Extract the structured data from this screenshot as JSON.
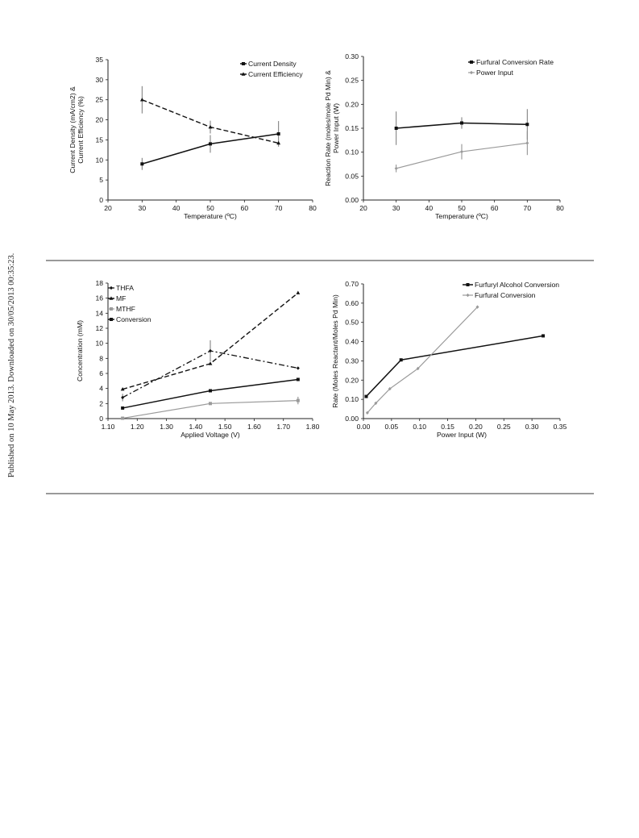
{
  "side_note": "Published on 10 May 2013. Downloaded on 30/05/2013 00:35:23.",
  "chart_data": [
    {
      "type": "line",
      "xlabel": "Temperature (ºC)",
      "ylabel_lines": [
        "Current Density (mA/cm2) &",
        "Current Efficiency (%)"
      ],
      "xlim": [
        20,
        80
      ],
      "ylim": [
        0,
        35
      ],
      "x_ticks": [
        20,
        30,
        40,
        50,
        60,
        70,
        80
      ],
      "y_ticks": [
        0,
        5,
        10,
        15,
        20,
        25,
        30,
        35
      ],
      "x_decimals": 0,
      "y_decimals": 0,
      "legend_position": "top-right",
      "grid": false,
      "series": [
        {
          "name": "Current Density",
          "style": "solid-black",
          "marker": "square",
          "x": [
            30,
            50,
            70
          ],
          "y": [
            9,
            14,
            16.5
          ],
          "err": [
            1.5,
            2.2,
            3.2
          ]
        },
        {
          "name": "Current Efficiency",
          "style": "dashed-black",
          "marker": "triangle",
          "x": [
            30,
            50,
            70
          ],
          "y": [
            25,
            18.2,
            14.2
          ],
          "err": [
            3.4,
            1.6,
            0
          ]
        }
      ]
    },
    {
      "type": "line",
      "xlabel": "Temperature (ºC)",
      "ylabel_lines": [
        "Reaction Rate (moles/mole Pd Min) &",
        "Power Input (W)"
      ],
      "xlim": [
        20,
        80
      ],
      "ylim": [
        0,
        0.3
      ],
      "x_ticks": [
        20,
        30,
        40,
        50,
        60,
        70,
        80
      ],
      "y_ticks": [
        0,
        0.05,
        0.1,
        0.15,
        0.2,
        0.25,
        0.3
      ],
      "x_decimals": 0,
      "y_decimals": 2,
      "legend_position": "top-right",
      "grid": false,
      "series": [
        {
          "name": "Furfural Conversion Rate",
          "style": "solid-black",
          "marker": "square",
          "x": [
            30,
            50,
            70
          ],
          "y": [
            0.15,
            0.161,
            0.158
          ],
          "err": [
            0.035,
            0.012,
            0.032
          ]
        },
        {
          "name": "Power Input",
          "style": "solid-gray",
          "marker": "diamond",
          "x": [
            30,
            50,
            70
          ],
          "y": [
            0.066,
            0.101,
            0.119
          ],
          "err": [
            0.008,
            0.016,
            0.025
          ]
        }
      ]
    },
    {
      "type": "line",
      "xlabel": "Applied Voltage (V)",
      "ylabel_lines": [
        "Concentration (mM)"
      ],
      "xlim": [
        1.1,
        1.8
      ],
      "ylim": [
        0,
        18
      ],
      "x_ticks": [
        1.1,
        1.2,
        1.3,
        1.4,
        1.5,
        1.6,
        1.7,
        1.8
      ],
      "y_ticks": [
        0,
        2,
        4,
        6,
        8,
        10,
        12,
        14,
        16,
        18
      ],
      "x_decimals": 2,
      "y_decimals": 0,
      "legend_position": "top-left",
      "grid": false,
      "series": [
        {
          "name": "THFA",
          "style": "dashdot-black",
          "marker": "diamond",
          "x": [
            1.15,
            1.45,
            1.75
          ],
          "y": [
            2.8,
            9.0,
            6.7
          ],
          "err": [
            0.5,
            1.4,
            0
          ]
        },
        {
          "name": "MF",
          "style": "dashed-black",
          "marker": "triangle",
          "x": [
            1.15,
            1.45,
            1.75
          ],
          "y": [
            3.9,
            7.3,
            16.7
          ],
          "err": [
            0,
            0,
            0
          ]
        },
        {
          "name": "MTHF",
          "style": "solid-gray",
          "marker": "square",
          "x": [
            1.15,
            1.45,
            1.75
          ],
          "y": [
            0.05,
            2.0,
            2.4
          ],
          "err": [
            0,
            0,
            0.5
          ]
        },
        {
          "name": "Conversion",
          "style": "solid-black",
          "marker": "square",
          "x": [
            1.15,
            1.45,
            1.75
          ],
          "y": [
            1.4,
            3.7,
            5.2
          ],
          "err": [
            0,
            0,
            0
          ]
        }
      ]
    },
    {
      "type": "line",
      "xlabel": "Power Input (W)",
      "ylabel_lines": [
        "Rate (Moles Reactant/Moles Pd Min)"
      ],
      "xlim": [
        0,
        0.35
      ],
      "ylim": [
        0,
        0.7
      ],
      "x_ticks": [
        0,
        0.05,
        0.1,
        0.15,
        0.2,
        0.25,
        0.3,
        0.35
      ],
      "y_ticks": [
        0,
        0.1,
        0.2,
        0.3,
        0.4,
        0.5,
        0.6,
        0.7
      ],
      "x_decimals": 2,
      "y_decimals": 2,
      "legend_position": "top-right",
      "grid": false,
      "series": [
        {
          "name": "Furfuryl Alcohol Conversion",
          "style": "solid-black",
          "marker": "square",
          "x": [
            0.005,
            0.067,
            0.32
          ],
          "y": [
            0.115,
            0.305,
            0.43
          ],
          "err": [
            0,
            0,
            0
          ]
        },
        {
          "name": "Furfural Conversion",
          "style": "solid-gray",
          "marker": "diamond",
          "x": [
            0.007,
            0.022,
            0.047,
            0.097,
            0.203
          ],
          "y": [
            0.03,
            0.08,
            0.155,
            0.26,
            0.58
          ],
          "err": [
            0,
            0,
            0,
            0,
            0
          ]
        }
      ]
    }
  ]
}
